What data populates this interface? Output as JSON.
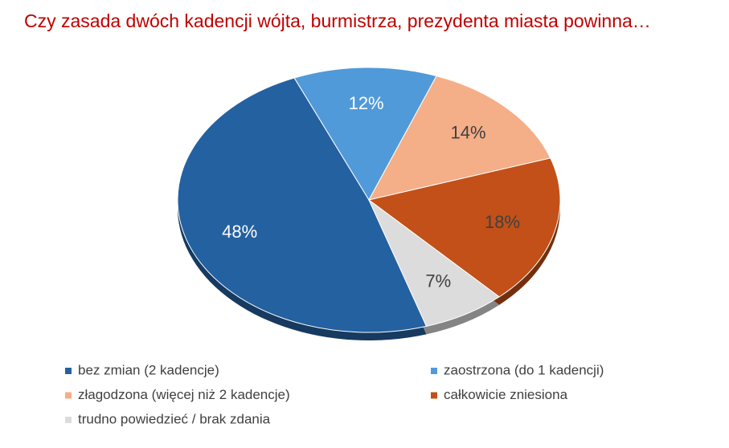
{
  "chart_data": {
    "type": "pie",
    "title": "Czy zasada dwóch kadencji wójta, burmistrza, prezydenta miasta powinna…",
    "categories": [
      "bez zmian (2 kadencje)",
      "zaostrzona (do 1 kadencji)",
      "złagodzona (więcej niż 2 kadencje)",
      "całkowicie zniesiona",
      "trudno powiedzieć / brak zdania"
    ],
    "values": [
      48,
      12,
      14,
      18,
      7
    ],
    "value_labels": [
      "48%",
      "12%",
      "14%",
      "18%",
      "7%"
    ],
    "colors": [
      "#2461a0",
      "#519ad9",
      "#f4ae88",
      "#c25018",
      "#dcdcdc"
    ],
    "legend": "bottom"
  }
}
